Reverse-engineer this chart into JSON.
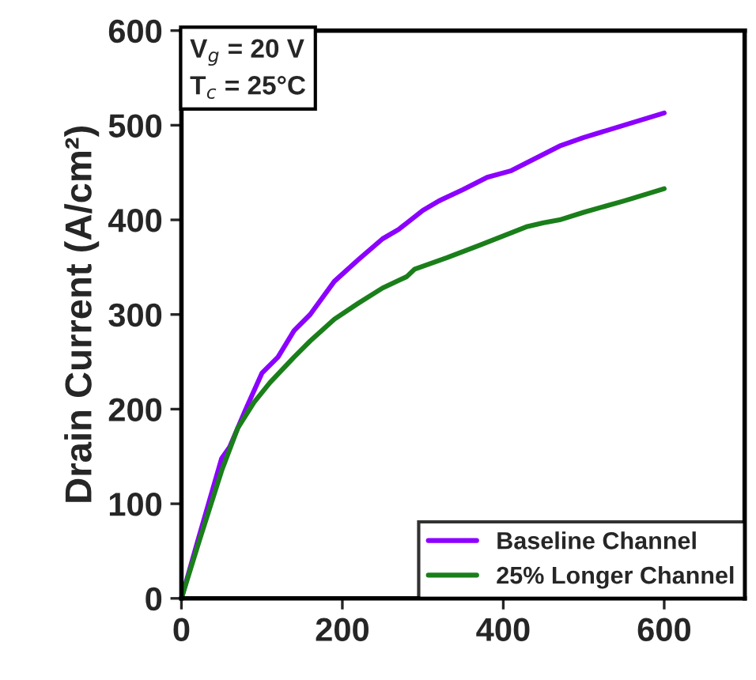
{
  "chart_data": {
    "type": "line",
    "ylabel": "Drain Current (A/cm²)",
    "annotations": [
      "V$_{g}$ = 20 V\nT$_{c}$ = 25°C"
    ],
    "xlim": [
      0,
      700
    ],
    "xticks": [
      0,
      200,
      400,
      600
    ],
    "ylim": [
      0,
      600
    ],
    "yticks": [
      0,
      100,
      200,
      300,
      400,
      500,
      600
    ],
    "grid": false,
    "legend": "bottom right",
    "marker": "none",
    "line_style": "solid",
    "series": [
      {
        "name": "Baseline Channel",
        "color": "#8b00ff",
        "x": [
          0,
          20,
          50,
          60,
          80,
          100,
          120,
          140,
          160,
          190,
          220,
          250,
          270,
          300,
          320,
          350,
          380,
          410,
          440,
          470,
          500,
          550,
          600
        ],
        "values": [
          0,
          60,
          148,
          160,
          200,
          238,
          255,
          283,
          300,
          335,
          358,
          380,
          390,
          410,
          420,
          432,
          445,
          452,
          465,
          478,
          487,
          500,
          513
        ]
      },
      {
        "name": "25% Longer Channel",
        "color": "#1a7f1a",
        "x": [
          0,
          20,
          50,
          70,
          90,
          110,
          140,
          160,
          190,
          220,
          250,
          280,
          290,
          330,
          370,
          400,
          430,
          450,
          470,
          500,
          550,
          600
        ],
        "values": [
          0,
          55,
          135,
          180,
          207,
          228,
          255,
          272,
          295,
          312,
          328,
          340,
          348,
          360,
          373,
          383,
          393,
          397,
          400,
          408,
          420,
          433
        ]
      }
    ]
  }
}
